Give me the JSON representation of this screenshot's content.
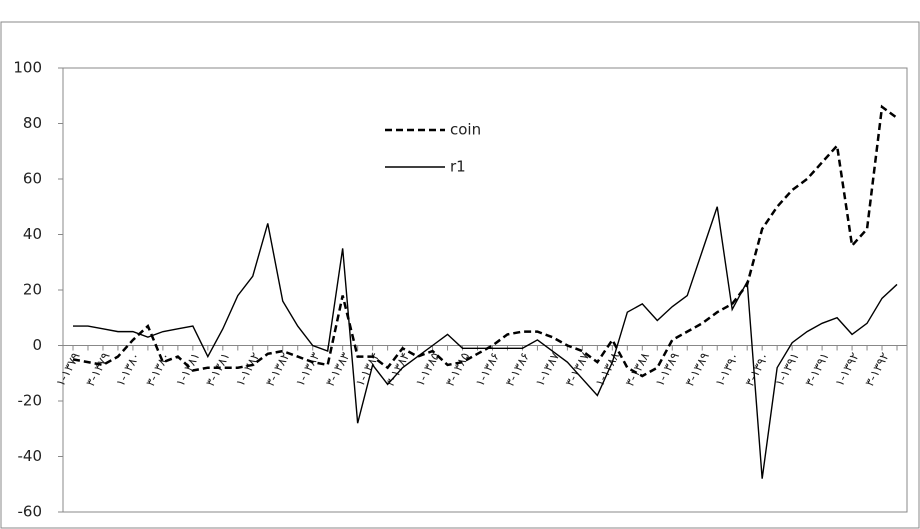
{
  "chart_data": {
    "type": "line",
    "categories": [
      "۱-۱۳۷۹",
      null,
      "۳-۱۳۷۹",
      null,
      "۱-۱۳۸۰",
      null,
      "۳-۱۳۸۰",
      null,
      "۱-۱۳۸۱",
      null,
      "۳-۱۳۸۱",
      null,
      "۱-۱۳۸۲",
      null,
      "۳-۱۳۸۲",
      null,
      "۱-۱۳۸۳",
      null,
      "۳-۱۳۸۳",
      null,
      "۱-۱۳۸۴",
      null,
      "۳-۱۳۸۴",
      null,
      "۱-۱۳۸۵",
      null,
      "۳-۱۳۸۵",
      null,
      "۱-۱۳۸۶",
      null,
      "۳-۱۳۸۶",
      null,
      "۱-۱۳۸۷",
      null,
      "۳-۱۳۸۷",
      null,
      "۱-۱۳۸۸",
      null,
      "۳-۱۳۸۸",
      null,
      "۱-۱۳۸۹",
      null,
      "۳-۱۳۸۹",
      null,
      "۱-۱۳۹۰",
      null,
      "۳-۱۳۹۰",
      null,
      "۱-۱۳۹۱",
      null,
      "۳-۱۳۹۱",
      null,
      "۱-۱۳۹۲",
      null,
      "۳-۱۳۹۲",
      null
    ],
    "series": [
      {
        "name": "coin",
        "color": "#000000",
        "dash": true,
        "values": [
          -5,
          -6,
          -7,
          -4,
          2,
          7,
          -6,
          -4,
          -9,
          -8,
          -8,
          -8,
          -7,
          -3,
          -2,
          -4,
          -6,
          -7,
          18,
          -4,
          -4,
          -8,
          -1,
          -4,
          -2,
          -7,
          -6,
          -3,
          0,
          4,
          5,
          5,
          3,
          0,
          -2,
          -6,
          2,
          -8,
          -11,
          -8,
          2,
          5,
          8,
          12,
          15,
          22,
          42,
          50,
          56,
          60,
          66,
          72,
          36,
          42,
          86,
          82
        ]
      },
      {
        "name": "r1",
        "color": "#000000",
        "dash": false,
        "values": [
          7,
          7,
          6,
          5,
          5,
          3,
          5,
          6,
          7,
          -4,
          6,
          18,
          25,
          44,
          16,
          7,
          0,
          -2,
          35,
          -28,
          -7,
          -14,
          -8,
          -4,
          0,
          4,
          -1,
          -1,
          -1,
          -1,
          -1,
          2,
          -2,
          -6,
          -12,
          -18,
          -6,
          12,
          15,
          9,
          14,
          18,
          34,
          50,
          13,
          23,
          -48,
          -8,
          1,
          5,
          8,
          10,
          4,
          8,
          17,
          22
        ]
      }
    ],
    "ylim": [
      -60,
      100
    ],
    "yticks": [
      -60,
      -40,
      -20,
      0,
      20,
      40,
      60,
      80,
      100
    ]
  }
}
